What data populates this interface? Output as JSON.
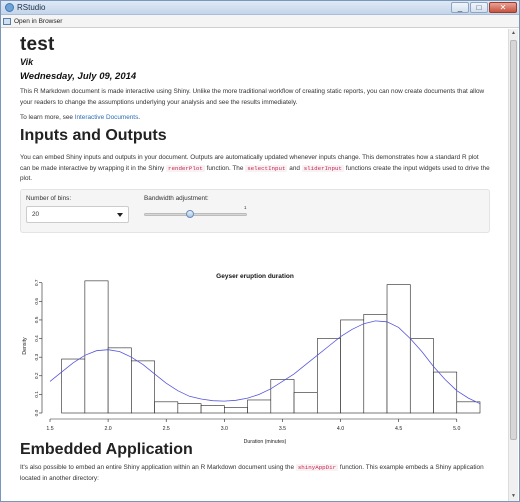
{
  "window": {
    "title": "RStudio",
    "controls": [
      "_",
      "□",
      "✕"
    ],
    "toolbar_button": "Open in Browser"
  },
  "doc": {
    "title": "test",
    "author": "Vik",
    "date": "Wednesday, July 09, 2014",
    "intro": "This R Markdown document is made interactive using Shiny. Unlike the more traditional workflow of creating static reports, you can now create documents that allow your readers to change the assumptions underlying your analysis and see the results immediately.",
    "learn_more_prefix": "To learn more, see ",
    "learn_more_link": "Interactive Documents",
    "learn_more_suffix": "."
  },
  "section1": {
    "heading": "Inputs and Outputs",
    "p_a": "You can embed Shiny inputs and outputs in your document. Outputs are automatically updated whenever inputs change. This demonstrates how a standard R plot can be made interactive by wrapping it in the Shiny ",
    "code_a": "renderPlot",
    "p_b": " function. The ",
    "code_b": "selectInput",
    "p_c": " and ",
    "code_c": "sliderInput",
    "p_d": " functions create the input widgets used to drive the plot."
  },
  "inputs": {
    "bins_label": "Number of bins:",
    "bins_value": "20",
    "bw_label": "Bandwidth adjustment:",
    "bw_value_label": "1",
    "bw_value": 1
  },
  "chart_data": {
    "type": "bar",
    "title": "Geyser eruption duration",
    "xlabel": "Duration (minutes)",
    "ylabel": "Density",
    "xlim": [
      1.5,
      5.2
    ],
    "ylim": [
      0,
      0.72
    ],
    "x_ticks": [
      "1.5",
      "2.0",
      "2.5",
      "3.0",
      "3.5",
      "4.0",
      "4.5",
      "5.0"
    ],
    "y_ticks": [
      "0.0",
      "0.1",
      "0.2",
      "0.3",
      "0.4",
      "0.5",
      "0.6",
      "0.7"
    ],
    "bin_edges": [
      1.6,
      1.8,
      2.0,
      2.2,
      2.4,
      2.6,
      2.8,
      3.0,
      3.2,
      3.4,
      3.6,
      3.8,
      4.0,
      4.2,
      4.4,
      4.6,
      4.8,
      5.0,
      5.2
    ],
    "values": [
      0.29,
      0.71,
      0.35,
      0.28,
      0.06,
      0.05,
      0.04,
      0.03,
      0.07,
      0.18,
      0.11,
      0.4,
      0.5,
      0.53,
      0.69,
      0.4,
      0.22,
      0.06
    ],
    "density_curve": {
      "x": [
        1.5,
        1.6,
        1.7,
        1.8,
        1.9,
        2.0,
        2.1,
        2.2,
        2.3,
        2.4,
        2.5,
        2.6,
        2.7,
        2.8,
        2.9,
        3.0,
        3.1,
        3.2,
        3.3,
        3.4,
        3.5,
        3.6,
        3.7,
        3.8,
        3.9,
        4.0,
        4.1,
        4.2,
        4.3,
        4.4,
        4.5,
        4.6,
        4.7,
        4.8,
        4.9,
        5.0,
        5.1,
        5.2
      ],
      "y": [
        0.17,
        0.22,
        0.27,
        0.31,
        0.335,
        0.34,
        0.33,
        0.3,
        0.26,
        0.21,
        0.16,
        0.12,
        0.09,
        0.075,
        0.066,
        0.064,
        0.068,
        0.08,
        0.1,
        0.13,
        0.17,
        0.21,
        0.26,
        0.31,
        0.36,
        0.41,
        0.45,
        0.48,
        0.495,
        0.49,
        0.46,
        0.4,
        0.33,
        0.25,
        0.18,
        0.12,
        0.08,
        0.05
      ]
    },
    "colors": {
      "bars": "#ffffff",
      "bar_stroke": "#222222",
      "curve": "#5555dd"
    }
  },
  "section2": {
    "heading": "Embedded Application",
    "p_a": "It's also possible to embed an entire Shiny application within an R Markdown document using the ",
    "code_a": "shinyAppDir",
    "p_b": " function. This example embeds a Shiny application located in another directory:"
  }
}
